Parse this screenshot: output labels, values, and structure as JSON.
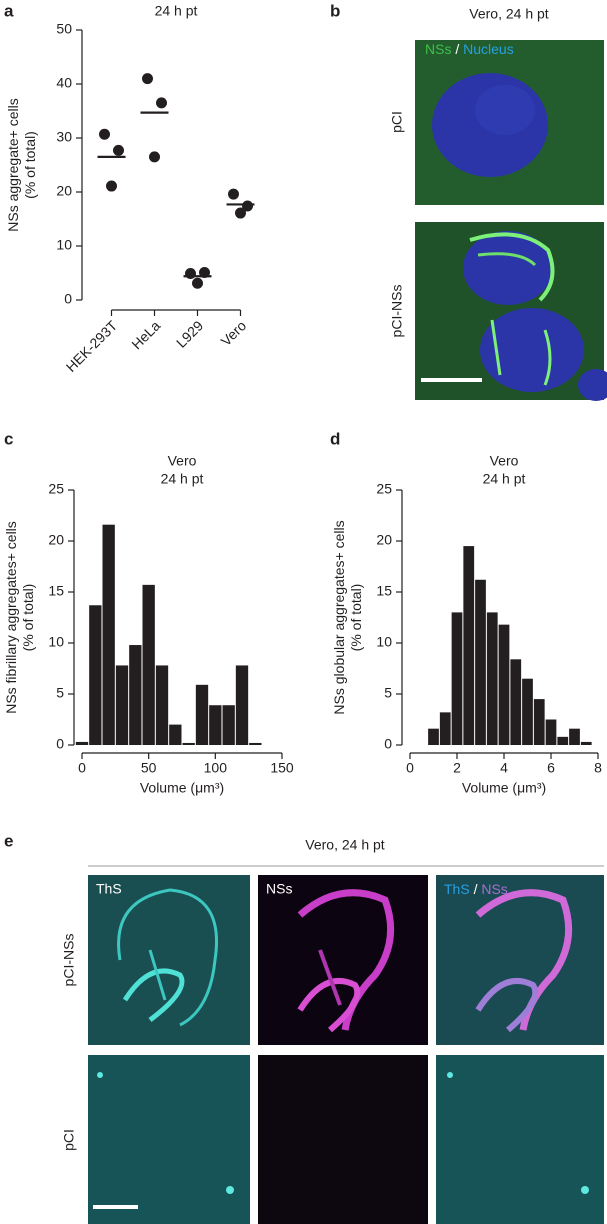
{
  "panel_labels": [
    "a",
    "b",
    "c",
    "d",
    "e"
  ],
  "chart_data": [
    {
      "type": "dot",
      "title": "24 h pt",
      "ylabel": [
        "NSs aggregate+ cells",
        "(% of total)"
      ],
      "categories": [
        "HEK-293T",
        "HeLa",
        "L929",
        "Vero"
      ],
      "values": [
        [
          30.7,
          27.7,
          21.1
        ],
        [
          41,
          36.5,
          26.5
        ],
        [
          4.9,
          5.1,
          3.1
        ],
        [
          19.6,
          17.4,
          16.1
        ]
      ],
      "means": [
        26.5,
        34.7,
        4.4,
        17.7
      ],
      "color": "#231f20",
      "ylim": [
        0,
        50
      ],
      "yticks": [
        0,
        10,
        20,
        30,
        40,
        50
      ]
    },
    {
      "type": "histogram",
      "title": [
        "Vero",
        "24 h pt"
      ],
      "ylabel": [
        "NSs fibrillary aggregates+ cells",
        "(% of total)"
      ],
      "xlabel": "Volume (μm³)",
      "bins": [
        -5,
        5,
        15,
        25,
        35,
        45,
        55,
        65,
        75,
        85,
        95,
        105,
        115,
        125,
        135
      ],
      "counts": [
        0.3,
        13.7,
        21.6,
        7.8,
        9.8,
        15.7,
        7.8,
        2,
        0.2,
        5.9,
        3.9,
        3.9,
        7.8,
        0.2
      ],
      "color": "#231f20",
      "xlim": [
        0,
        150
      ],
      "xticks": [
        0,
        50,
        100,
        150
      ],
      "ylim": [
        0,
        25
      ],
      "yticks": [
        0,
        5,
        10,
        15,
        20,
        25
      ]
    },
    {
      "type": "histogram",
      "title": [
        "Vero",
        "24 h pt"
      ],
      "ylabel": [
        "NSs globular aggregates+ cells",
        "(% of total)"
      ],
      "xlabel": "Volume (μm³)",
      "bins": [
        0.75,
        1.25,
        1.75,
        2.25,
        2.75,
        3.25,
        3.75,
        4.25,
        4.75,
        5.25,
        5.75,
        6.25,
        6.75,
        7.25,
        7.75
      ],
      "counts": [
        1.6,
        3.2,
        13,
        19.5,
        16.2,
        13,
        11.8,
        8.4,
        6.5,
        4.5,
        2.5,
        0.8,
        1.6,
        0.3
      ],
      "color": "#231f20",
      "xlim": [
        0,
        8
      ],
      "xticks": [
        0,
        2,
        4,
        6,
        8
      ],
      "ylim": [
        0,
        25
      ],
      "yticks": [
        0,
        5,
        10,
        15,
        20,
        25
      ]
    }
  ],
  "image_panels": {
    "b": {
      "title": "Vero, 24 h pt",
      "overlay": [
        "NSs",
        "/",
        "Nucleus"
      ],
      "rows": [
        "pCI",
        "pCI-NSs"
      ]
    },
    "e": {
      "title": "Vero, 24 h pt",
      "columns": [
        "ThS",
        "NSs"
      ],
      "merge": [
        "ThS",
        "/",
        "NSs"
      ],
      "rows": [
        "pCI-NSs",
        "pCI"
      ]
    }
  }
}
